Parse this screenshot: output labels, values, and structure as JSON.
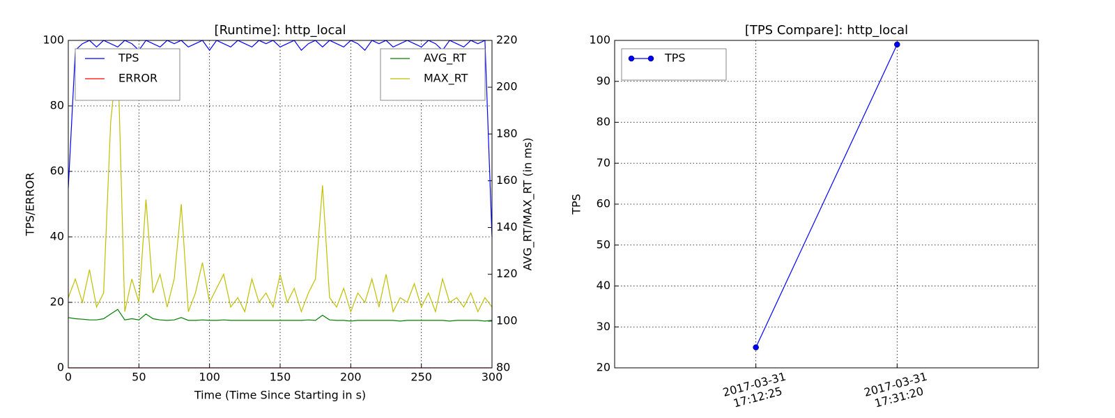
{
  "chart_data": [
    {
      "type": "line",
      "title": "[Runtime]: http_local",
      "xlabel": "Time (Time Since Starting in s)",
      "ylabel": "TPS/ERROR",
      "y2label": "AVG_RT/MAX_RT (in ms)",
      "x": [
        0,
        5,
        10,
        15,
        20,
        25,
        30,
        35,
        40,
        45,
        50,
        55,
        60,
        65,
        70,
        75,
        80,
        85,
        90,
        95,
        100,
        105,
        110,
        115,
        120,
        125,
        130,
        135,
        140,
        145,
        150,
        155,
        160,
        165,
        170,
        175,
        180,
        185,
        190,
        195,
        200,
        205,
        210,
        215,
        220,
        225,
        230,
        235,
        240,
        245,
        250,
        255,
        260,
        265,
        270,
        275,
        280,
        285,
        290,
        295,
        300
      ],
      "series": [
        {
          "name": "TPS",
          "color": "#0000ff",
          "axis": "y",
          "values": [
            55,
            97,
            99,
            100,
            98,
            100,
            99,
            98,
            100,
            99,
            97,
            100,
            99,
            98,
            100,
            99,
            100,
            98,
            99,
            100,
            97,
            100,
            99,
            98,
            100,
            99,
            98,
            100,
            99,
            100,
            98,
            99,
            100,
            97,
            99,
            100,
            98,
            100,
            99,
            98,
            100,
            99,
            97,
            100,
            99,
            100,
            98,
            99,
            100,
            99,
            98,
            100,
            99,
            97,
            100,
            99,
            98,
            100,
            99,
            100,
            40
          ]
        },
        {
          "name": "ERROR",
          "color": "#ff0000",
          "axis": "y",
          "values": [
            0,
            0,
            0,
            0,
            0,
            0,
            0,
            0,
            0,
            0,
            0,
            0,
            0,
            0,
            0,
            0,
            0,
            0,
            0,
            0,
            0,
            0,
            0,
            0,
            0,
            0,
            0,
            0,
            0,
            0,
            0,
            0,
            0,
            0,
            0,
            0,
            0,
            0,
            0,
            0,
            0,
            0,
            0,
            0,
            0,
            0,
            0,
            0,
            0,
            0,
            0,
            0,
            0,
            0,
            0,
            0,
            0,
            0,
            0,
            0,
            0
          ]
        },
        {
          "name": "AVG_RT",
          "color": "#008000",
          "axis": "y2",
          "values": [
            101.5,
            101,
            100.8,
            100.5,
            100.5,
            101,
            103,
            105,
            100.5,
            101,
            100.5,
            103,
            101,
            100.5,
            100.3,
            100.5,
            101.5,
            100.3,
            100.3,
            100.5,
            100.3,
            100.3,
            100.5,
            100.3,
            100.3,
            100.3,
            100.3,
            100.3,
            100.3,
            100.3,
            100.3,
            100.3,
            100.3,
            100.3,
            100.5,
            100.3,
            102.5,
            100.5,
            100.3,
            100.3,
            100,
            100.3,
            100.3,
            100.3,
            100.3,
            100.3,
            100.3,
            100,
            100.3,
            100.3,
            100.3,
            100.3,
            100.3,
            100.3,
            100,
            100.3,
            100.3,
            100.3,
            100.3,
            100,
            100.3
          ]
        },
        {
          "name": "MAX_RT",
          "color": "#bfbf00",
          "axis": "y2",
          "values": [
            110,
            118,
            108,
            122,
            106,
            112,
            185,
            215,
            104,
            118,
            108,
            152,
            112,
            120,
            106,
            118,
            150,
            104,
            112,
            125,
            108,
            114,
            120,
            106,
            110,
            104,
            118,
            108,
            112,
            106,
            120,
            108,
            114,
            104,
            112,
            118,
            158,
            110,
            106,
            114,
            104,
            112,
            108,
            118,
            106,
            120,
            104,
            110,
            108,
            116,
            106,
            112,
            104,
            118,
            108,
            110,
            106,
            112,
            104,
            110,
            106
          ]
        }
      ],
      "xlim": [
        0,
        300
      ],
      "xticks": [
        0,
        50,
        100,
        150,
        200,
        250,
        300
      ],
      "ylim": [
        0,
        100
      ],
      "yticks": [
        0,
        20,
        40,
        60,
        80,
        100
      ],
      "y2lim": [
        80,
        220
      ],
      "y2ticks": [
        80,
        100,
        120,
        140,
        160,
        180,
        200,
        220
      ],
      "grid": true,
      "legend_y": "upper left",
      "legend_y2": "upper right"
    },
    {
      "type": "line",
      "title": "[TPS Compare]: http_local",
      "ylabel": "TPS",
      "markers": true,
      "categories": [
        "2017-03-31\n17:12:25",
        "2017-03-31\n17:31:20"
      ],
      "series": [
        {
          "name": "TPS",
          "color": "#0000ff",
          "values": [
            25,
            99
          ]
        }
      ],
      "ylim": [
        20,
        100
      ],
      "yticks": [
        20,
        30,
        40,
        50,
        60,
        70,
        80,
        90,
        100
      ],
      "grid": true,
      "legend": "upper left"
    }
  ]
}
